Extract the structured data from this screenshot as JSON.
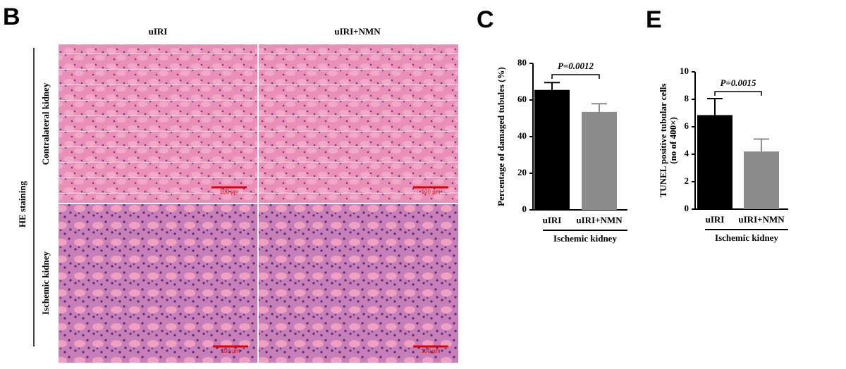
{
  "panel_b": {
    "label": "B",
    "columns": [
      "uIRI",
      "uIRI+NMN"
    ],
    "rows": [
      "Contralateral kidney",
      "Ischemic kidney"
    ],
    "group_label": "HE staining",
    "scale_bar_label": "100 μm"
  },
  "panel_labels": [
    "C",
    "E"
  ],
  "chart_data": [
    {
      "type": "bar",
      "ylabel": "Percentage of damaged tubules (%)",
      "xlabel": "Ischemic kidney",
      "categories": [
        "uIRI",
        "uIRI+NMN"
      ],
      "values": [
        65.5,
        53.5
      ],
      "errors": [
        4,
        4.5
      ],
      "colors": [
        "#000000",
        "#8c8c8c"
      ],
      "ylim": [
        0,
        80
      ],
      "yticks": [
        0,
        20,
        40,
        60,
        80
      ],
      "annotation": "P=0.0012"
    },
    {
      "type": "bar",
      "ylabel": [
        "TUNEL positive tubular cells",
        "(no of 400×)"
      ],
      "xlabel": "Ischemic kidney",
      "categories": [
        "uIRI",
        "uIRI+NMN"
      ],
      "values": [
        6.85,
        4.2
      ],
      "errors": [
        1.2,
        0.9
      ],
      "colors": [
        "#000000",
        "#8c8c8c"
      ],
      "ylim": [
        0,
        10
      ],
      "yticks": [
        0,
        2,
        4,
        6,
        8,
        10
      ],
      "annotation": "P=0.0015"
    }
  ]
}
